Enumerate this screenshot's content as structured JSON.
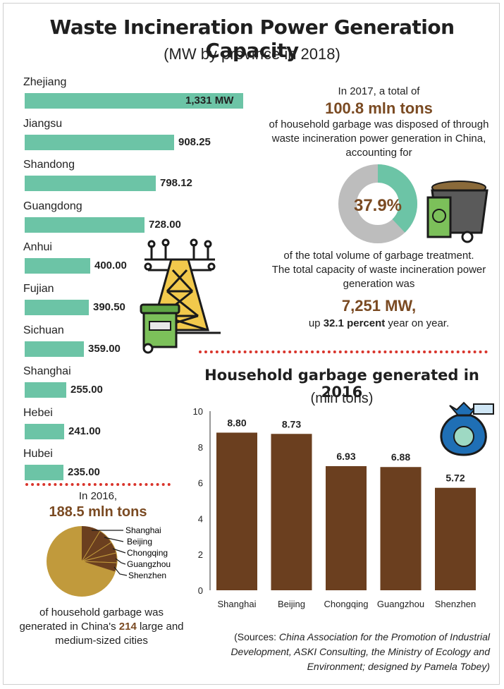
{
  "title": "Waste Incineration Power Generation Capacity",
  "subtitle": "(MW by province in 2018)",
  "provinces_chart": {
    "type": "bar",
    "orientation": "horizontal",
    "categories": [
      "Zhejiang",
      "Jiangsu",
      "Shandong",
      "Guangdong",
      "Anhui",
      "Fujian",
      "Sichuan",
      "Shanghai",
      "Hebei",
      "Hubei"
    ],
    "values": [
      1331,
      908.25,
      798.12,
      728.0,
      400.0,
      390.5,
      359.0,
      255.0,
      241.0,
      235.0
    ],
    "labels": [
      "1,331 MW",
      "908.25",
      "798.12",
      "728.00",
      "400.00",
      "390.50",
      "359.00",
      "255.00",
      "241.00",
      "235.00"
    ],
    "bar_color": "#6cc4a6"
  },
  "info_2017": {
    "line1": "In 2017, a total of",
    "amount": "100.8 mln tons",
    "line2": "of household garbage was disposed of through",
    "line3": "waste incineration power generation in China,",
    "line4": "accounting for",
    "percent": "37.9%",
    "donut_value": 37.9,
    "line5": "of the total volume of garbage treatment.",
    "line6": "The total capacity of waste incineration power",
    "line7": "generation was",
    "capacity": "7,251 MW,",
    "line8_pre": "up ",
    "line8_bold": "32.1 percent",
    "line8_post": " year on year."
  },
  "info_2016": {
    "line1": "In 2016,",
    "amount": "188.5 mln tons",
    "pie_labels": [
      "Shanghai",
      "Beijing",
      "Chongqing",
      "Guangzhou",
      "Shenzhen"
    ],
    "line2": "of household garbage was",
    "line3_pre": "generated in China's ",
    "line3_bold": "214",
    "line3_post": " large and",
    "line4": "medium-sized cities"
  },
  "chart_data": {
    "type": "bar",
    "title": "Household garbage generated in 2016",
    "subtitle": "(mln tons)",
    "categories": [
      "Shanghai",
      "Beijing",
      "Chongqing",
      "Guangzhou",
      "Shenzhen"
    ],
    "values": [
      8.8,
      8.73,
      6.93,
      6.88,
      5.72
    ],
    "value_labels": [
      "8.80",
      "8.73",
      "6.93",
      "6.88",
      "5.72"
    ],
    "ylim": [
      0,
      10
    ],
    "yticks": [
      "0",
      "2",
      "4",
      "6",
      "8",
      "10"
    ],
    "grid": false,
    "bar_color": "#6b3f1f"
  },
  "sources": {
    "prefix": "(Sources: ",
    "text1": "China Association for the Promotion of Industrial",
    "text2": "Development, ASKI Consulting, the Ministry of Ecology and",
    "text3": "Environment; designed by Pamela Tobey)"
  },
  "colors": {
    "teal": "#6cc4a6",
    "brown": "#6b3f1f",
    "accent_brown": "#7a4a22",
    "gold": "#c19a3c",
    "red_dots": "#d9342b",
    "gray": "#bdbdbd"
  },
  "icons": [
    "power-tower-icon",
    "green-trash-bin-icon",
    "garbage-cart-icon",
    "garbage-bag-icon"
  ]
}
